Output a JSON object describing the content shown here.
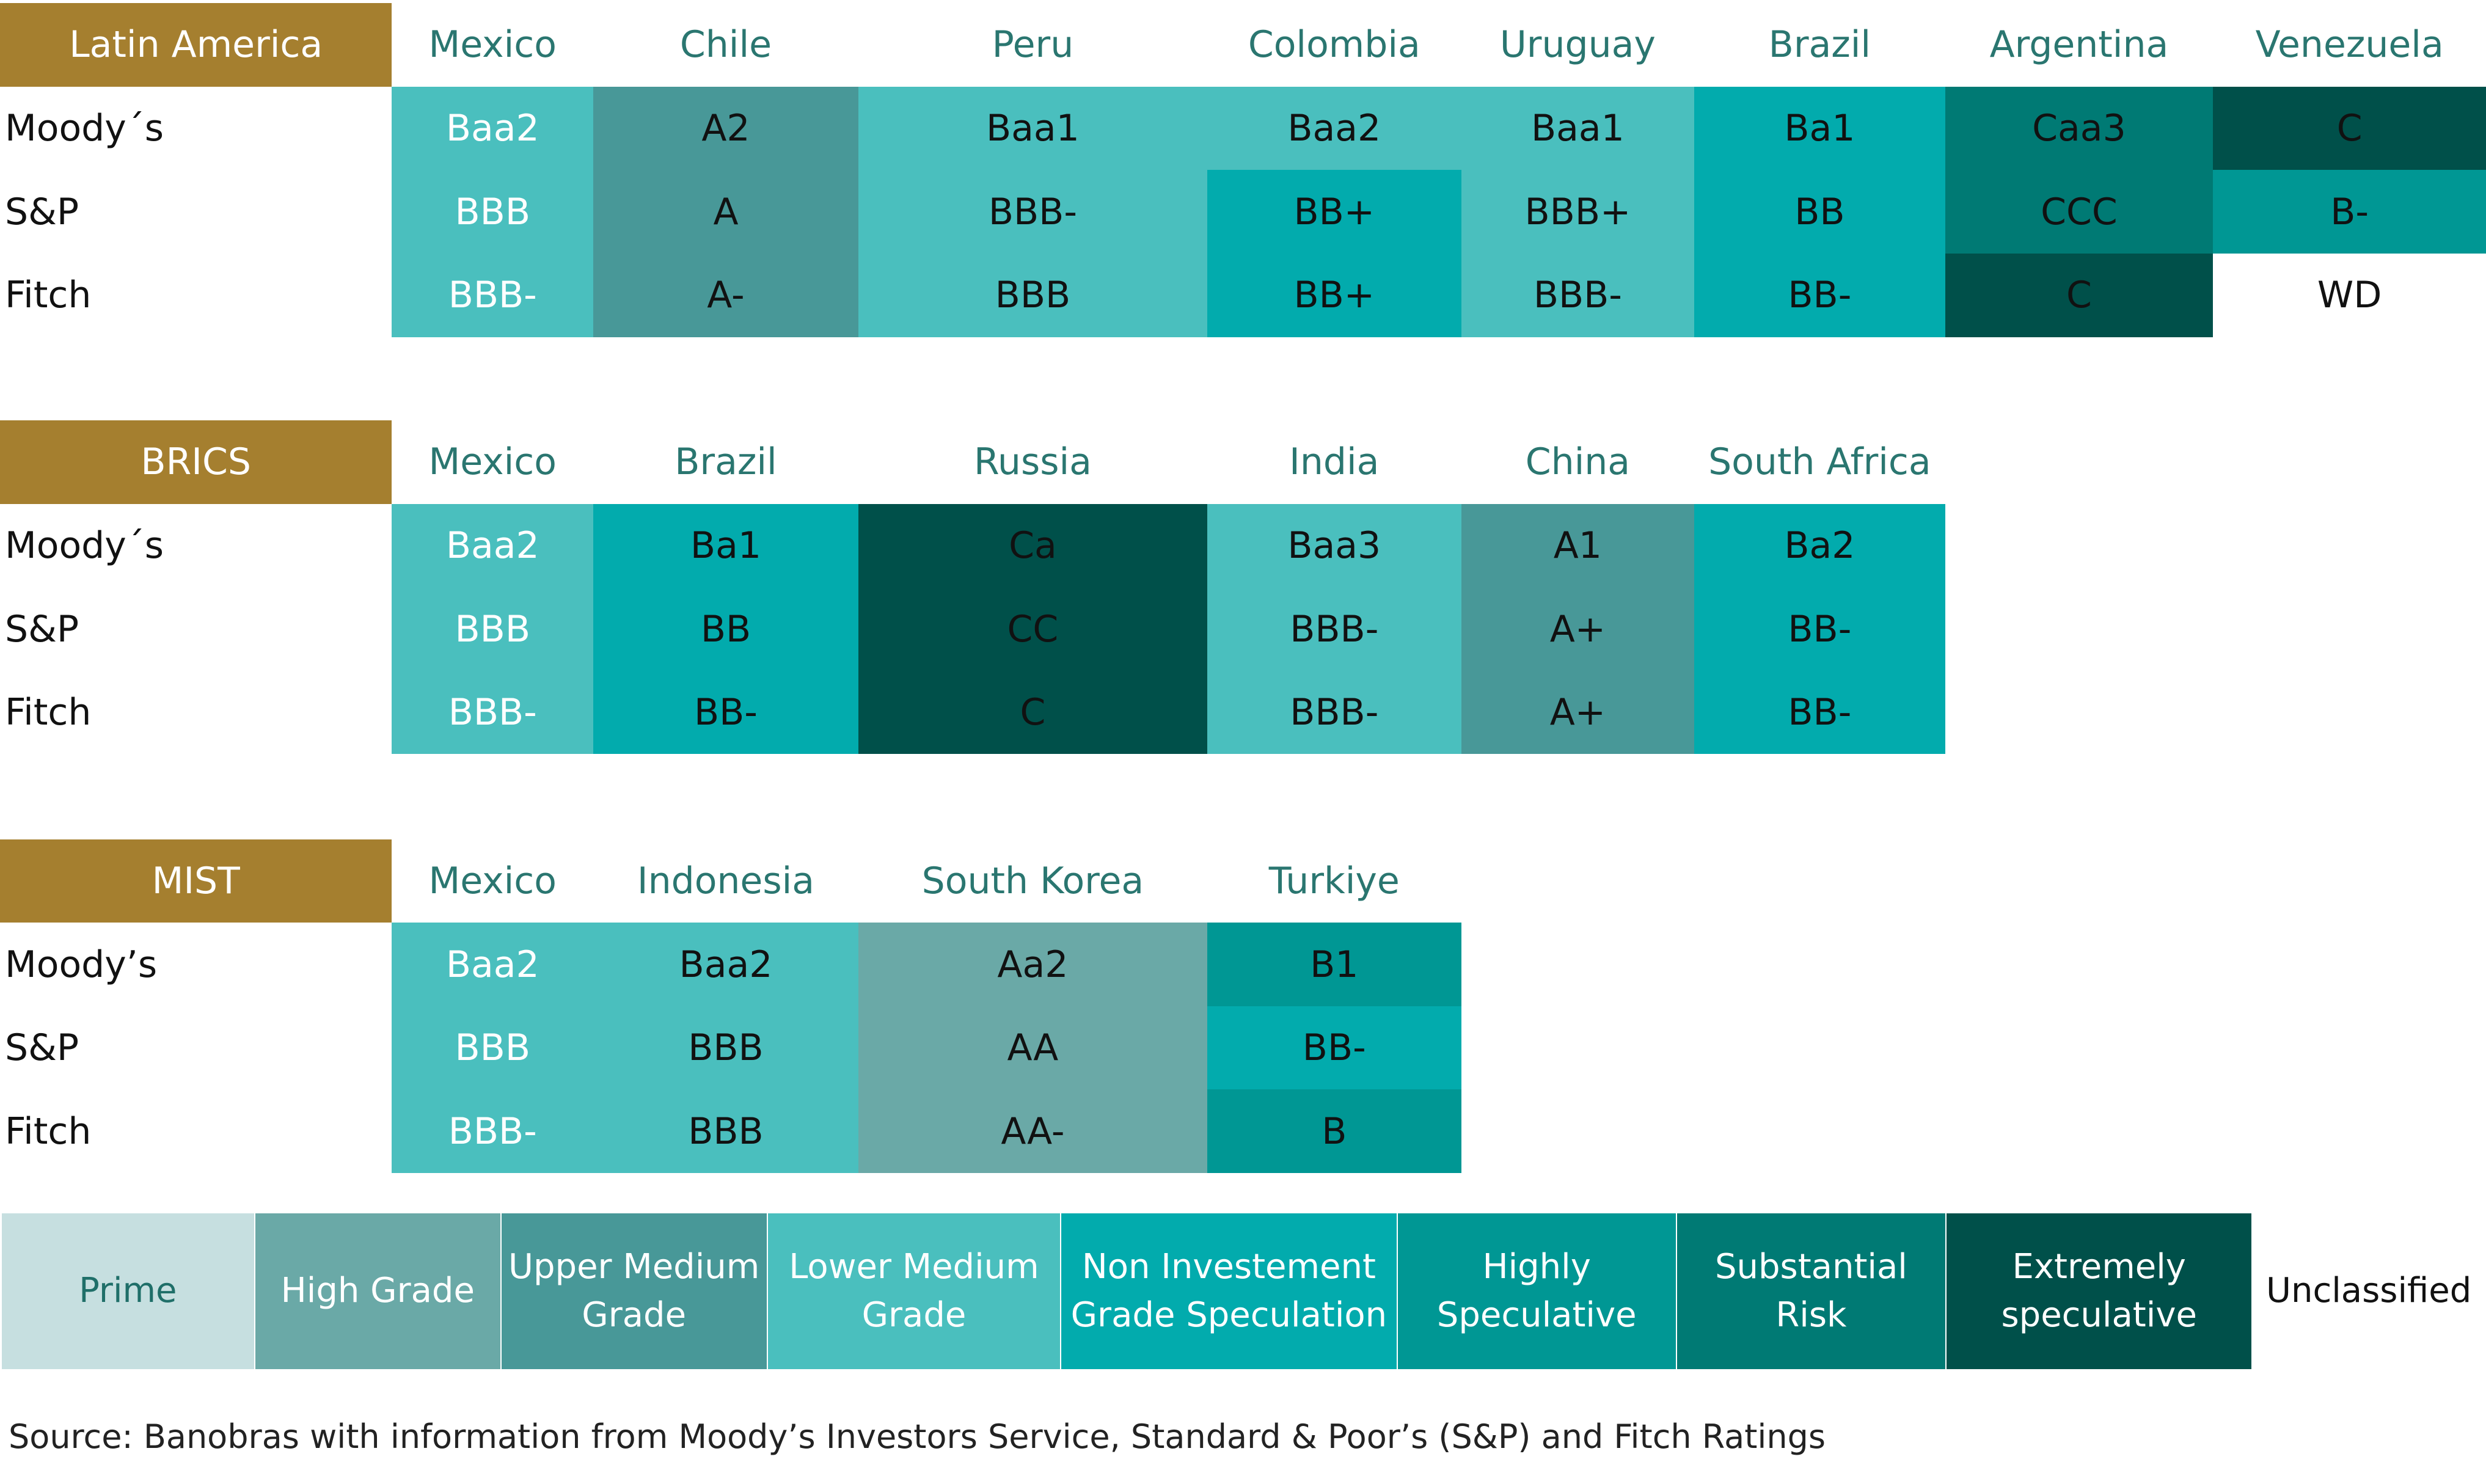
{
  "palette": {
    "Prime": "#c6dfe0",
    "High Grade": "#6aa9a7",
    "Upper Medium Grade": "#489898",
    "Lower Medium Grade": "#4abfbe",
    "Non Investement Grade Speculation": "#02abad",
    "Highly Speculative": "#009794",
    "Substantial Risk": "#007a74",
    "Extremely speculative": "#00504a",
    "Unclassified": "#ffffff",
    "group_label_bg": "#a57f2f",
    "country_text": "#2a7670"
  },
  "chart_data": {
    "type": "table",
    "groups": [
      {
        "label": "Latin America",
        "countries": [
          "Mexico",
          "Chile",
          "Peru",
          "Colombia",
          "Uruguay",
          "Brazil",
          "Argentina",
          "Venezuela"
        ],
        "agencies": [
          {
            "name": "Moody´s",
            "ratings": [
              "Baa2",
              "A2",
              "Baa1",
              "Baa2",
              "Baa1",
              "Ba1",
              "Caa3",
              "C"
            ],
            "grades": [
              "Lower Medium Grade",
              "Upper Medium Grade",
              "Lower Medium Grade",
              "Lower Medium Grade",
              "Lower Medium Grade",
              "Non Investement Grade Speculation",
              "Substantial Risk",
              "Extremely speculative"
            ]
          },
          {
            "name": "S&P",
            "ratings": [
              "BBB",
              "A",
              "BBB-",
              "BB+",
              "BBB+",
              "BB",
              "CCC",
              "B-"
            ],
            "grades": [
              "Lower Medium Grade",
              "Upper Medium Grade",
              "Lower Medium Grade",
              "Non Investement Grade Speculation",
              "Lower Medium Grade",
              "Non Investement Grade Speculation",
              "Substantial Risk",
              "Highly Speculative"
            ]
          },
          {
            "name": "Fitch",
            "ratings": [
              "BBB-",
              "A-",
              "BBB",
              "BB+",
              "BBB-",
              "BB-",
              "C",
              "WD"
            ],
            "grades": [
              "Lower Medium Grade",
              "Upper Medium Grade",
              "Lower Medium Grade",
              "Non Investement Grade Speculation",
              "Lower Medium Grade",
              "Non Investement Grade Speculation",
              "Extremely speculative",
              "Unclassified"
            ]
          }
        ]
      },
      {
        "label": "BRICS",
        "countries": [
          "Mexico",
          "Brazil",
          "Russia",
          "India",
          "China",
          "South Africa"
        ],
        "agencies": [
          {
            "name": "Moody´s",
            "ratings": [
              "Baa2",
              "Ba1",
              "Ca",
              "Baa3",
              "A1",
              "Ba2"
            ],
            "grades": [
              "Lower Medium Grade",
              "Non Investement Grade Speculation",
              "Extremely speculative",
              "Lower Medium Grade",
              "Upper Medium Grade",
              "Non Investement Grade Speculation"
            ]
          },
          {
            "name": "S&P",
            "ratings": [
              "BBB",
              "BB",
              "CC",
              "BBB-",
              "A+",
              "BB-"
            ],
            "grades": [
              "Lower Medium Grade",
              "Non Investement Grade Speculation",
              "Extremely speculative",
              "Lower Medium Grade",
              "Upper Medium Grade",
              "Non Investement Grade Speculation"
            ]
          },
          {
            "name": "Fitch",
            "ratings": [
              "BBB-",
              "BB-",
              "C",
              "BBB-",
              "A+",
              "BB-"
            ],
            "grades": [
              "Lower Medium Grade",
              "Non Investement Grade Speculation",
              "Extremely speculative",
              "Lower Medium Grade",
              "Upper Medium Grade",
              "Non Investement Grade Speculation"
            ]
          }
        ]
      },
      {
        "label": "MIST",
        "countries": [
          "Mexico",
          "Indonesia",
          "South Korea",
          "Turkiye"
        ],
        "agencies": [
          {
            "name": "Moody’s",
            "ratings": [
              "Baa2",
              "Baa2",
              "Aa2",
              "B1"
            ],
            "grades": [
              "Lower Medium Grade",
              "Lower Medium Grade",
              "High Grade",
              "Highly Speculative"
            ]
          },
          {
            "name": "S&P",
            "ratings": [
              "BBB",
              "BBB",
              "AA",
              "BB-"
            ],
            "grades": [
              "Lower Medium Grade",
              "Lower Medium Grade",
              "High Grade",
              "Non Investement Grade Speculation"
            ]
          },
          {
            "name": "Fitch",
            "ratings": [
              "BBB-",
              "BBB",
              "AA-",
              "B"
            ],
            "grades": [
              "Lower Medium Grade",
              "Lower Medium Grade",
              "High Grade",
              "Highly Speculative"
            ]
          }
        ]
      }
    ],
    "legend": [
      {
        "label": "Prime",
        "color": "#c6dfe0",
        "text_color": "#1f6f69"
      },
      {
        "label": "High Grade",
        "color": "#6aa9a7",
        "text_color": "#ffffff"
      },
      {
        "label": "Upper Medium Grade",
        "color": "#489898",
        "text_color": "#ffffff"
      },
      {
        "label": "Lower Medium Grade",
        "color": "#4abfbe",
        "text_color": "#ffffff"
      },
      {
        "label": "Non Investement Grade Speculation",
        "color": "#02abad",
        "text_color": "#ffffff"
      },
      {
        "label": "Highly Speculative",
        "color": "#009794",
        "text_color": "#ffffff"
      },
      {
        "label": "Substantial Risk",
        "color": "#007a74",
        "text_color": "#ffffff"
      },
      {
        "label": "Extremely speculative",
        "color": "#00504a",
        "text_color": "#ffffff"
      },
      {
        "label": "Unclassified",
        "color": "#ffffff",
        "text_color": "#111111"
      }
    ],
    "source": "Source: Banobras with information from Moody’s Investors Service, Standard & Poor’s (S&P) and Fitch Ratings"
  }
}
